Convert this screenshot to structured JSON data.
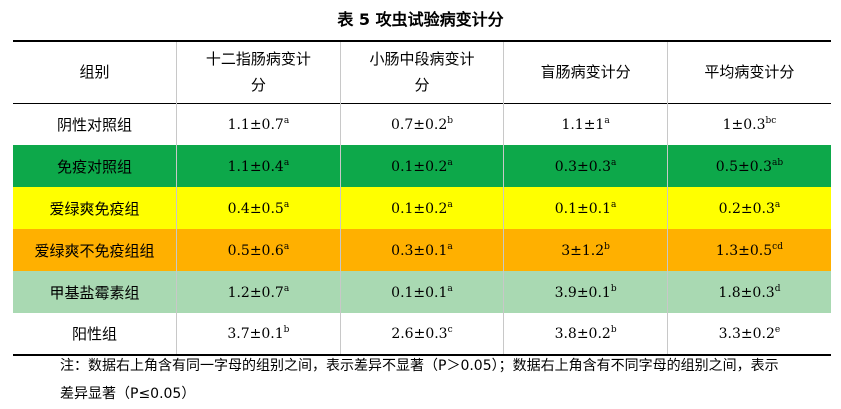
{
  "title": "表 5  攻虫试验病变计分",
  "table": {
    "header": [
      "组别",
      "十二指肠病变计分",
      "小肠中段病变计分",
      "盲肠病变计分",
      "平均病变计分"
    ],
    "rows": [
      [
        {
          "text": "阴性对照组"
        },
        {
          "text": "1.1±0.7",
          "sup": "a"
        },
        {
          "text": "0.7±0.2",
          "sup": "b"
        },
        {
          "text": "1.1±1",
          "sup": "a"
        },
        {
          "text": "1±0.3",
          "sup": "bc"
        }
      ],
      [
        {
          "text": "免疫对照组"
        },
        {
          "text": "1.1±0.4",
          "sup": "a"
        },
        {
          "text": "0.1±0.2",
          "sup": "a"
        },
        {
          "text": "0.3±0.3",
          "sup": "a"
        },
        {
          "text": "0.5±0.3",
          "sup": "ab"
        }
      ],
      [
        {
          "text": "爱绿爽免疫组"
        },
        {
          "text": "0.4±0.5",
          "sup": "a"
        },
        {
          "text": "0.1±0.2",
          "sup": "a"
        },
        {
          "text": "0.1±0.1",
          "sup": "a"
        },
        {
          "text": "0.2±0.3",
          "sup": "a"
        }
      ],
      [
        {
          "text": "爱绿爽不免疫组组"
        },
        {
          "text": "0.5±0.6",
          "sup": "a"
        },
        {
          "text": "0.3±0.1",
          "sup": "a"
        },
        {
          "text": "3±1.2",
          "sup": "b"
        },
        {
          "text": "1.3±0.5",
          "sup": "cd"
        }
      ],
      [
        {
          "text": "甲基盐霉素组"
        },
        {
          "text": "1.2±0.7",
          "sup": "a"
        },
        {
          "text": "0.1±0.1",
          "sup": "a"
        },
        {
          "text": "3.9±0.1",
          "sup": "b"
        },
        {
          "text": "1.8±0.3",
          "sup": "d"
        }
      ],
      [
        {
          "text": "阳性组"
        },
        {
          "text": "3.7±0.1",
          "sup": "b"
        },
        {
          "text": "2.6±0.3",
          "sup": "c"
        },
        {
          "text": "3.8±0.2",
          "sup": "b"
        },
        {
          "text": "3.3±0.2",
          "sup": "e"
        }
      ]
    ]
  },
  "note": "注：数据右上角含有同一字母的组别之间，表示差异不显著（P＞0.05）；数据右上角含有不同字母的组别之间，表示差异显著（P≤0.05）"
}
